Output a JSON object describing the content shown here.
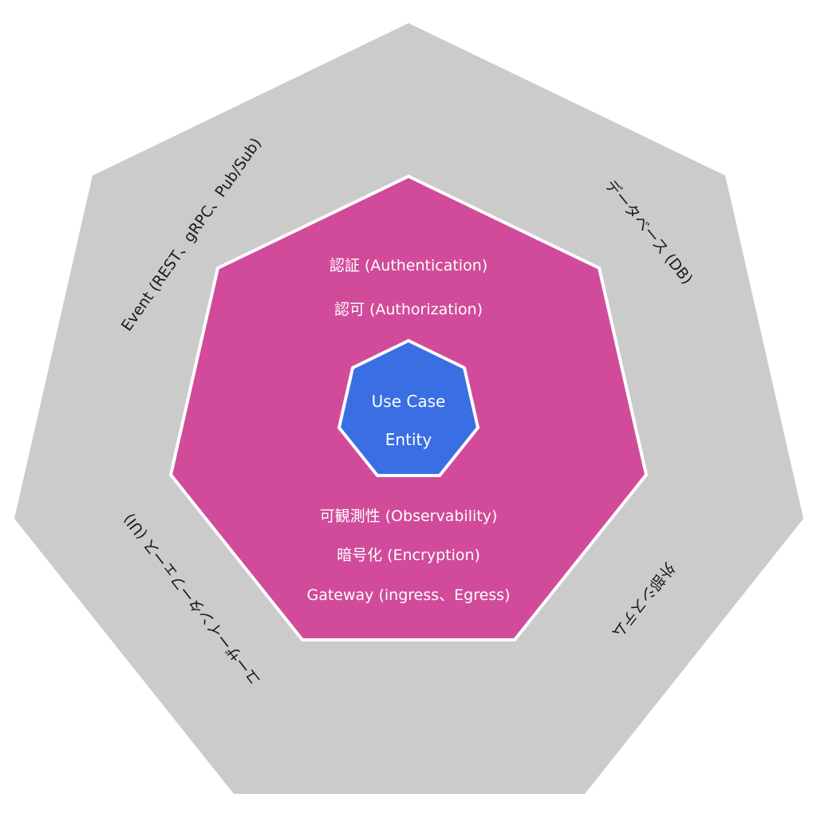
{
  "colors": {
    "outer_fill": "#cbcbcb",
    "middle_fill": "#d14b9a",
    "core_fill": "#3a6ee3",
    "ring_stroke": "#ffffff",
    "inner_text": "#ffffff",
    "outer_text": "#1a1a1a"
  },
  "layers": {
    "outer": {
      "labels": [
        "Event (REST、gRPC、Pub/Sub)",
        "データベース (DB)",
        "外部システム",
        "ユーザーインターフェース (UI)"
      ]
    },
    "middle": {
      "top_labels": [
        "認証 (Authentication)",
        "認可 (Authorization)"
      ],
      "bottom_labels": [
        "可観測性 (Observability)",
        "暗号化 (Encryption)",
        "Gateway (ingress、Egress)"
      ]
    },
    "core": {
      "labels": [
        "Use Case",
        "Entity"
      ]
    }
  }
}
